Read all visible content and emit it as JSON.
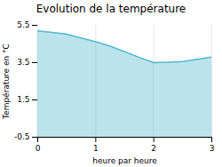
{
  "chart_data": {
    "type": "area",
    "title": "Evolution de la température",
    "x_label": "heure par heure",
    "y_label": "Température en °C",
    "x": [
      0,
      0.25,
      0.5,
      0.75,
      1.0,
      1.25,
      1.5,
      1.75,
      2.0,
      2.25,
      2.5,
      2.75,
      3.0
    ],
    "values": [
      5.2,
      5.12,
      5.02,
      4.82,
      4.62,
      4.38,
      4.08,
      3.78,
      3.5,
      3.52,
      3.56,
      3.68,
      3.8
    ],
    "color": "#55b8d0",
    "xlim": [
      0,
      3
    ],
    "ylim": [
      -0.5,
      5.5
    ],
    "xticks": [
      0,
      1,
      2,
      3
    ],
    "yticks": [
      -0.5,
      1.5,
      3.5,
      5.5
    ],
    "grid": "x"
  }
}
